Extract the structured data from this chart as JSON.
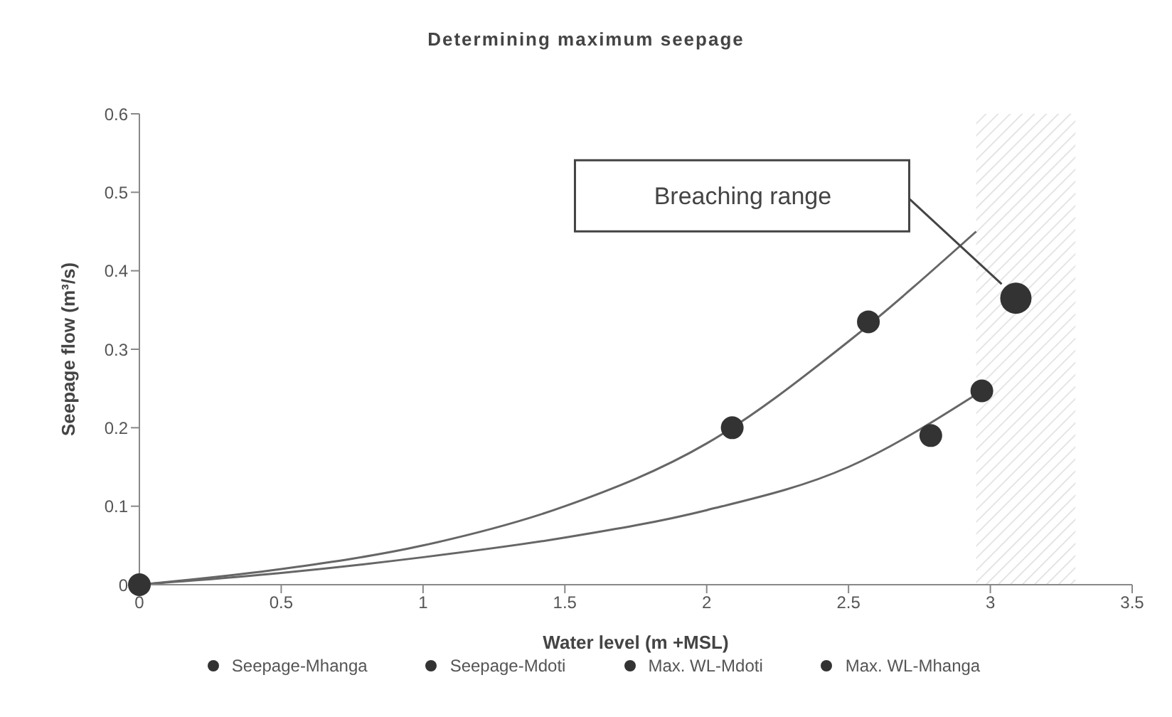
{
  "chart_data": {
    "type": "scatter",
    "title": "Determining maximum seepage",
    "xlabel": "Water level (m +MSL)",
    "ylabel": "Seepage flow (m³/s)",
    "xlim": [
      0,
      3.5
    ],
    "xticks": [
      0,
      0.5,
      1,
      1.5,
      2,
      2.5,
      3,
      3.5
    ],
    "ylim": [
      0,
      0.6
    ],
    "yticks": [
      0,
      0.1,
      0.2,
      0.3,
      0.4,
      0.5,
      0.6
    ],
    "grid": false,
    "legend": "bottom",
    "line_style": "solid",
    "series": [
      {
        "name": "Seepage-Mhanga",
        "color": "#333333",
        "marker": "circle",
        "x": [
          0,
          2.09,
          2.57
        ],
        "values": [
          0,
          0.2,
          0.335
        ]
      },
      {
        "name": "Seepage-Mdoti",
        "color": "#333333",
        "marker": "circle",
        "x": [
          2.79
        ],
        "values": [
          0.19
        ]
      },
      {
        "name": "Max. WL-Mdoti",
        "color": "#333333",
        "marker": "circle",
        "x": [
          2.97
        ],
        "values": [
          0.247
        ]
      },
      {
        "name": "Max. WL-Mhanga",
        "color": "#333333",
        "marker": "circle",
        "x": [
          3.09
        ],
        "values": [
          0.365
        ]
      },
      {
        "type": "line",
        "color": "#666666",
        "marker": "none",
        "x": [
          0,
          0.5,
          1,
          1.5,
          2,
          2.5,
          2.95
        ],
        "values": [
          0,
          0.02,
          0.05,
          0.1,
          0.18,
          0.31,
          0.45
        ]
      },
      {
        "type": "line",
        "color": "#666666",
        "marker": "none",
        "x": [
          0,
          0.5,
          1,
          1.5,
          2,
          2.5,
          2.97
        ],
        "values": [
          0,
          0.015,
          0.035,
          0.06,
          0.095,
          0.15,
          0.247
        ]
      }
    ],
    "bands": [
      {
        "axis": "x",
        "from": 2.95,
        "to": 3.3,
        "color": "#bbbbbb"
      }
    ],
    "annotations": [
      "Breaching range"
    ]
  }
}
